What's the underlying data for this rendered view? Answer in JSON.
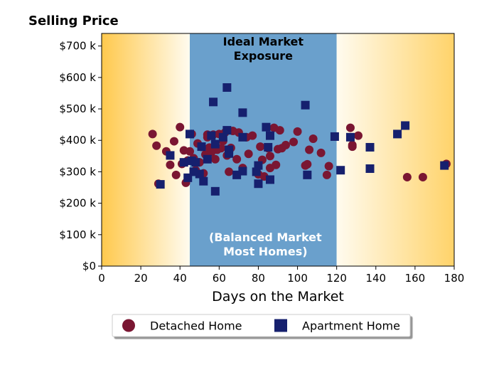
{
  "chart_data": {
    "type": "scatter",
    "title": "Selling Price",
    "xlabel": "Days on the Market",
    "ylabel": "",
    "xlim": [
      0,
      180
    ],
    "ylim": [
      0,
      740000
    ],
    "xticks": [
      0,
      20,
      40,
      60,
      80,
      100,
      120,
      140,
      160,
      180
    ],
    "xtick_labels": [
      "0",
      "20",
      "40",
      "60",
      "80",
      "100",
      "120",
      "140",
      "160",
      "180"
    ],
    "yticks": [
      0,
      100000,
      200000,
      300000,
      400000,
      500000,
      600000,
      700000
    ],
    "ytick_labels": [
      "$0",
      "$100 k",
      "$200 k",
      "$300 k",
      "$400 k",
      "$500 k",
      "$600 k",
      "$700 k"
    ],
    "grid": false,
    "legend_position": "bottom-center",
    "bands": [
      {
        "x_from": 0,
        "x_to": 45,
        "style": "gradient-gold",
        "label": ""
      },
      {
        "x_from": 45,
        "x_to": 120,
        "style": "blue",
        "color": "#6aa0cc",
        "label_top": [
          "Ideal Market",
          "Exposure"
        ],
        "label_bottom": [
          "(Balanced Market",
          "Most Homes)"
        ]
      },
      {
        "x_from": 120,
        "x_to": 180,
        "style": "gradient-gold",
        "label": ""
      }
    ],
    "series": [
      {
        "name": "Detached Home",
        "marker": "circle",
        "color": "#7a1632",
        "points": [
          [
            26,
            420000
          ],
          [
            28,
            383000
          ],
          [
            29,
            262000
          ],
          [
            33,
            365000
          ],
          [
            35,
            322000
          ],
          [
            37,
            397000
          ],
          [
            38,
            290000
          ],
          [
            40,
            442000
          ],
          [
            41,
            325000
          ],
          [
            42,
            368000
          ],
          [
            43,
            265000
          ],
          [
            44,
            336000
          ],
          [
            45,
            365000
          ],
          [
            46,
            420000
          ],
          [
            47,
            343000
          ],
          [
            48,
            305000
          ],
          [
            49,
            390000
          ],
          [
            50,
            330000
          ],
          [
            51,
            379000
          ],
          [
            52,
            295000
          ],
          [
            53,
            355000
          ],
          [
            54,
            418000
          ],
          [
            54,
            410000
          ],
          [
            55,
            377000
          ],
          [
            56,
            362000
          ],
          [
            57,
            418000
          ],
          [
            58,
            340000
          ],
          [
            59,
            370000
          ],
          [
            60,
            420000
          ],
          [
            61,
            375000
          ],
          [
            62,
            398000
          ],
          [
            63,
            425000
          ],
          [
            64,
            352000
          ],
          [
            65,
            300000
          ],
          [
            66,
            376000
          ],
          [
            67,
            430000
          ],
          [
            69,
            340000
          ],
          [
            70,
            425000
          ],
          [
            72,
            312000
          ],
          [
            74,
            410000
          ],
          [
            75,
            357000
          ],
          [
            77,
            415000
          ],
          [
            80,
            292000
          ],
          [
            81,
            380000
          ],
          [
            82,
            338000
          ],
          [
            83,
            285000
          ],
          [
            85,
            375000
          ],
          [
            86,
            350000
          ],
          [
            86,
            312000
          ],
          [
            88,
            440000
          ],
          [
            89,
            322000
          ],
          [
            90,
            372000
          ],
          [
            91,
            432000
          ],
          [
            92,
            375000
          ],
          [
            94,
            385000
          ],
          [
            98,
            395000
          ],
          [
            100,
            428000
          ],
          [
            104,
            320000
          ],
          [
            105,
            324000
          ],
          [
            106,
            370000
          ],
          [
            108,
            405000
          ],
          [
            112,
            360000
          ],
          [
            115,
            290000
          ],
          [
            116,
            318000
          ],
          [
            127,
            440000
          ],
          [
            128,
            385000
          ],
          [
            128,
            380000
          ],
          [
            131,
            415000
          ],
          [
            156,
            283000
          ],
          [
            164,
            283000
          ],
          [
            176,
            325000
          ]
        ]
      },
      {
        "name": "Apartment Home",
        "marker": "square",
        "color": "#16206e",
        "points": [
          [
            30,
            260000
          ],
          [
            35,
            352000
          ],
          [
            42,
            330000
          ],
          [
            44,
            281000
          ],
          [
            45,
            420000
          ],
          [
            46,
            335000
          ],
          [
            47,
            300000
          ],
          [
            48,
            330000
          ],
          [
            50,
            293000
          ],
          [
            51,
            380000
          ],
          [
            52,
            270000
          ],
          [
            54,
            340000
          ],
          [
            56,
            415000
          ],
          [
            57,
            522000
          ],
          [
            58,
            238000
          ],
          [
            58,
            388000
          ],
          [
            62,
            410000
          ],
          [
            64,
            432000
          ],
          [
            64,
            568000
          ],
          [
            65,
            370000
          ],
          [
            65,
            358000
          ],
          [
            69,
            290000
          ],
          [
            72,
            488000
          ],
          [
            72,
            410000
          ],
          [
            72,
            302000
          ],
          [
            79,
            300000
          ],
          [
            80,
            262000
          ],
          [
            80,
            320000
          ],
          [
            84,
            442000
          ],
          [
            85,
            378000
          ],
          [
            86,
            275000
          ],
          [
            86,
            415000
          ],
          [
            104,
            512000
          ],
          [
            105,
            290000
          ],
          [
            119,
            412000
          ],
          [
            122,
            305000
          ],
          [
            127,
            410000
          ],
          [
            137,
            378000
          ],
          [
            137,
            310000
          ],
          [
            151,
            420000
          ],
          [
            155,
            447000
          ],
          [
            175,
            320000
          ]
        ]
      }
    ]
  }
}
